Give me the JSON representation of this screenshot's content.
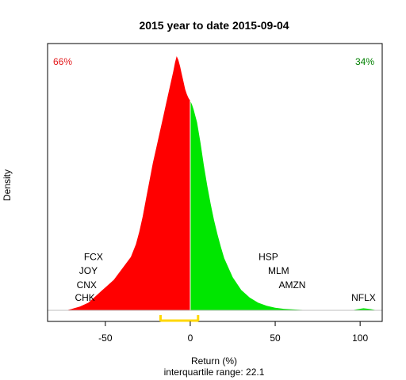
{
  "chart_data": {
    "type": "area",
    "title": "2015  year to date 2015-09-04",
    "xlabel": "Return (%)",
    "ylabel": "Density",
    "subtitle": "interquartile range: 22.1",
    "xlim": [
      -84,
      113
    ],
    "ylim": [
      0,
      1.0
    ],
    "x_ticks": [
      -50,
      0,
      50,
      100
    ],
    "x_tick_labels": [
      "-50",
      "0",
      "50",
      "100"
    ],
    "grid": false,
    "split_at": 0,
    "negative_color": "#ff0000",
    "positive_color": "#00e600",
    "baseline_color": "#bebebe",
    "iqr_color": "#ffd700",
    "iqr": [
      -17.5,
      4.6
    ],
    "left_share": {
      "text": "66%",
      "color": "#e31a1c"
    },
    "right_share": {
      "text": "34%",
      "color": "#008000"
    },
    "density": [
      {
        "x": -73,
        "y": 0.0
      },
      {
        "x": -70,
        "y": 0.005
      },
      {
        "x": -65,
        "y": 0.015
      },
      {
        "x": -60,
        "y": 0.03
      },
      {
        "x": -55,
        "y": 0.06
      },
      {
        "x": -50,
        "y": 0.09
      },
      {
        "x": -45,
        "y": 0.12
      },
      {
        "x": -40,
        "y": 0.165
      },
      {
        "x": -35,
        "y": 0.21
      },
      {
        "x": -32,
        "y": 0.26
      },
      {
        "x": -30,
        "y": 0.31
      },
      {
        "x": -28,
        "y": 0.37
      },
      {
        "x": -26,
        "y": 0.44
      },
      {
        "x": -24,
        "y": 0.51
      },
      {
        "x": -22,
        "y": 0.58
      },
      {
        "x": -20,
        "y": 0.64
      },
      {
        "x": -18,
        "y": 0.7
      },
      {
        "x": -16,
        "y": 0.76
      },
      {
        "x": -14,
        "y": 0.82
      },
      {
        "x": -12,
        "y": 0.88
      },
      {
        "x": -10,
        "y": 0.94
      },
      {
        "x": -9,
        "y": 0.975
      },
      {
        "x": -8,
        "y": 1.0
      },
      {
        "x": -7,
        "y": 0.985
      },
      {
        "x": -6,
        "y": 0.96
      },
      {
        "x": -5,
        "y": 0.93
      },
      {
        "x": -4,
        "y": 0.9
      },
      {
        "x": -3,
        "y": 0.87
      },
      {
        "x": -2,
        "y": 0.85
      },
      {
        "x": -1,
        "y": 0.835
      },
      {
        "x": 0,
        "y": 0.825
      },
      {
        "x": 1,
        "y": 0.81
      },
      {
        "x": 2,
        "y": 0.79
      },
      {
        "x": 4,
        "y": 0.74
      },
      {
        "x": 6,
        "y": 0.66
      },
      {
        "x": 8,
        "y": 0.57
      },
      {
        "x": 10,
        "y": 0.49
      },
      {
        "x": 12,
        "y": 0.42
      },
      {
        "x": 14,
        "y": 0.355
      },
      {
        "x": 16,
        "y": 0.3
      },
      {
        "x": 18,
        "y": 0.25
      },
      {
        "x": 20,
        "y": 0.205
      },
      {
        "x": 25,
        "y": 0.13
      },
      {
        "x": 30,
        "y": 0.08
      },
      {
        "x": 35,
        "y": 0.05
      },
      {
        "x": 40,
        "y": 0.03
      },
      {
        "x": 45,
        "y": 0.018
      },
      {
        "x": 50,
        "y": 0.01
      },
      {
        "x": 55,
        "y": 0.006
      },
      {
        "x": 60,
        "y": 0.004
      },
      {
        "x": 65,
        "y": 0.002
      },
      {
        "x": 70,
        "y": 0.001
      },
      {
        "x": 80,
        "y": 0.0
      },
      {
        "x": 95,
        "y": 0.0
      },
      {
        "x": 98,
        "y": 0.004
      },
      {
        "x": 102,
        "y": 0.008
      },
      {
        "x": 106,
        "y": 0.005
      },
      {
        "x": 110,
        "y": 0.0
      }
    ],
    "annotations": [
      {
        "label": "FCX",
        "x": -57,
        "y": 0.21
      },
      {
        "label": "JOY",
        "x": -60,
        "y": 0.155
      },
      {
        "label": "CNX",
        "x": -61,
        "y": 0.1
      },
      {
        "label": "CHK",
        "x": -62,
        "y": 0.05
      },
      {
        "label": "HSP",
        "x": 46,
        "y": 0.21
      },
      {
        "label": "MLM",
        "x": 52,
        "y": 0.155
      },
      {
        "label": "AMZN",
        "x": 60,
        "y": 0.1
      },
      {
        "label": "NFLX",
        "x": 102,
        "y": 0.05
      }
    ]
  }
}
